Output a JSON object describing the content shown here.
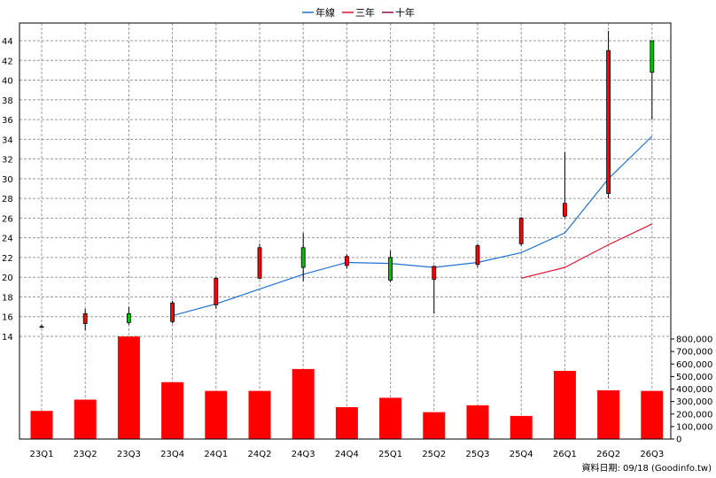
{
  "chart_data": {
    "type": "candlestick-with-volume",
    "legend": [
      {
        "name": "年線",
        "color": "#1f6fd1"
      },
      {
        "name": "三年",
        "color": "#e0102f"
      },
      {
        "name": "十年",
        "color": "#8a0a4a"
      }
    ],
    "legend_placement": "top-center",
    "grid": true,
    "categories": [
      "23Q1",
      "23Q2",
      "23Q3",
      "23Q4",
      "24Q1",
      "24Q2",
      "24Q3",
      "24Q4",
      "25Q1",
      "25Q2",
      "25Q3",
      "25Q4",
      "26Q1",
      "26Q2",
      "26Q3"
    ],
    "price_axis": {
      "min": 14,
      "max": 44,
      "ticks": [
        "14",
        "16",
        "18",
        "20",
        "22",
        "24",
        "26",
        "28",
        "30",
        "32",
        "34",
        "36",
        "38",
        "40",
        "42",
        "44"
      ]
    },
    "volume_axis": {
      "min": 0,
      "max": 800000,
      "ticks": [
        "0",
        "100,000",
        "200,000",
        "300,000",
        "400,000",
        "500,000",
        "600,000",
        "700,000",
        "800,000"
      ]
    },
    "candles": [
      {
        "open": 15.0,
        "close": 15.0,
        "high": 15.2,
        "low": 14.9,
        "color": "#000000"
      },
      {
        "open": 15.3,
        "close": 16.3,
        "high": 16.8,
        "low": 14.6,
        "color": "#ff0000"
      },
      {
        "open": 16.3,
        "close": 15.4,
        "high": 17.0,
        "low": 15.2,
        "color": "#00c000"
      },
      {
        "open": 15.5,
        "close": 17.4,
        "high": 17.6,
        "low": 15.3,
        "color": "#ff0000"
      },
      {
        "open": 17.2,
        "close": 19.9,
        "high": 20.0,
        "low": 16.8,
        "color": "#ff0000"
      },
      {
        "open": 19.9,
        "close": 23.0,
        "high": 23.4,
        "low": 19.8,
        "color": "#ff0000"
      },
      {
        "open": 23.0,
        "close": 21.0,
        "high": 24.5,
        "low": 19.6,
        "color": "#00c000"
      },
      {
        "open": 21.2,
        "close": 22.1,
        "high": 22.3,
        "low": 20.9,
        "color": "#ff0000"
      },
      {
        "open": 22.0,
        "close": 19.7,
        "high": 22.7,
        "low": 19.5,
        "color": "#00c000"
      },
      {
        "open": 19.8,
        "close": 21.1,
        "high": 21.2,
        "low": 16.3,
        "color": "#ff0000"
      },
      {
        "open": 21.3,
        "close": 23.2,
        "high": 23.4,
        "low": 21.0,
        "color": "#ff0000"
      },
      {
        "open": 23.4,
        "close": 26.0,
        "high": 26.1,
        "low": 23.2,
        "color": "#ff0000"
      },
      {
        "open": 26.2,
        "close": 27.5,
        "high": 32.7,
        "low": 26.0,
        "color": "#ff0000"
      },
      {
        "open": 28.5,
        "close": 43.0,
        "high": 45.0,
        "low": 28.0,
        "color": "#ff0000"
      },
      {
        "open": 44.0,
        "close": 40.8,
        "high": 44.0,
        "low": 36.0,
        "color": "#00c000"
      }
    ],
    "lines": [
      {
        "name": "年線",
        "color": "#1f6fd1",
        "values": [
          null,
          null,
          null,
          16.1,
          17.3,
          18.8,
          20.3,
          21.5,
          21.4,
          21.0,
          21.5,
          22.5,
          24.5,
          30.0,
          34.3
        ]
      },
      {
        "name": "三年",
        "color": "#e0102f",
        "values": [
          null,
          null,
          null,
          null,
          null,
          null,
          null,
          null,
          null,
          null,
          null,
          19.9,
          21.0,
          23.3,
          25.4
        ]
      }
    ],
    "volume": [
      225000,
      315000,
      820000,
      455000,
      385000,
      385000,
      560000,
      255000,
      330000,
      215000,
      270000,
      185000,
      545000,
      390000,
      385000
    ],
    "volume_color": "#ff0000"
  },
  "footer": {
    "source": "資料日期: 09/18  (Goodinfo.tw)"
  }
}
